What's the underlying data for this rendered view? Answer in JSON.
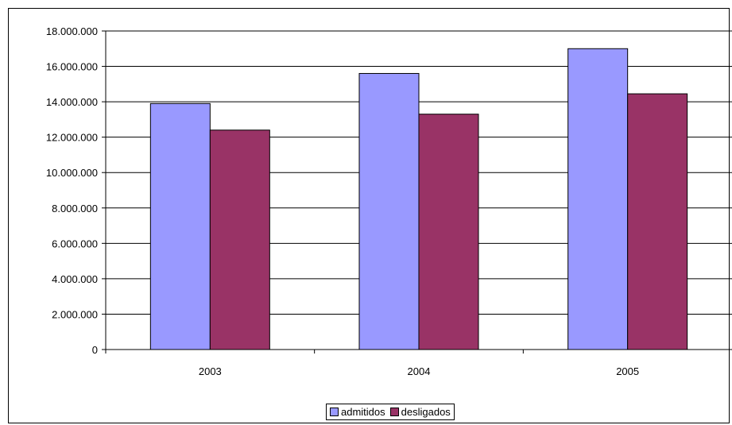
{
  "chart_data": {
    "type": "bar",
    "title": "",
    "xlabel": "",
    "ylabel": "",
    "categories": [
      "2003",
      "2004",
      "2005"
    ],
    "series": [
      {
        "name": "admitidos",
        "values": [
          13900000,
          15600000,
          17000000
        ],
        "color": "#9999ff"
      },
      {
        "name": "desligados",
        "values": [
          12400000,
          13300000,
          14450000
        ],
        "color": "#993366"
      }
    ],
    "ylim": [
      0,
      18000000
    ],
    "yticks": [
      "0",
      "2.000.000",
      "4.000.000",
      "6.000.000",
      "8.000.000",
      "10.000.000",
      "12.000.000",
      "14.000.000",
      "16.000.000",
      "18.000.000"
    ],
    "grid": true,
    "legend_position": "bottom"
  },
  "legend": {
    "items": [
      {
        "label": "admitidos",
        "color": "#9999ff"
      },
      {
        "label": "desligados",
        "color": "#993366"
      }
    ]
  }
}
